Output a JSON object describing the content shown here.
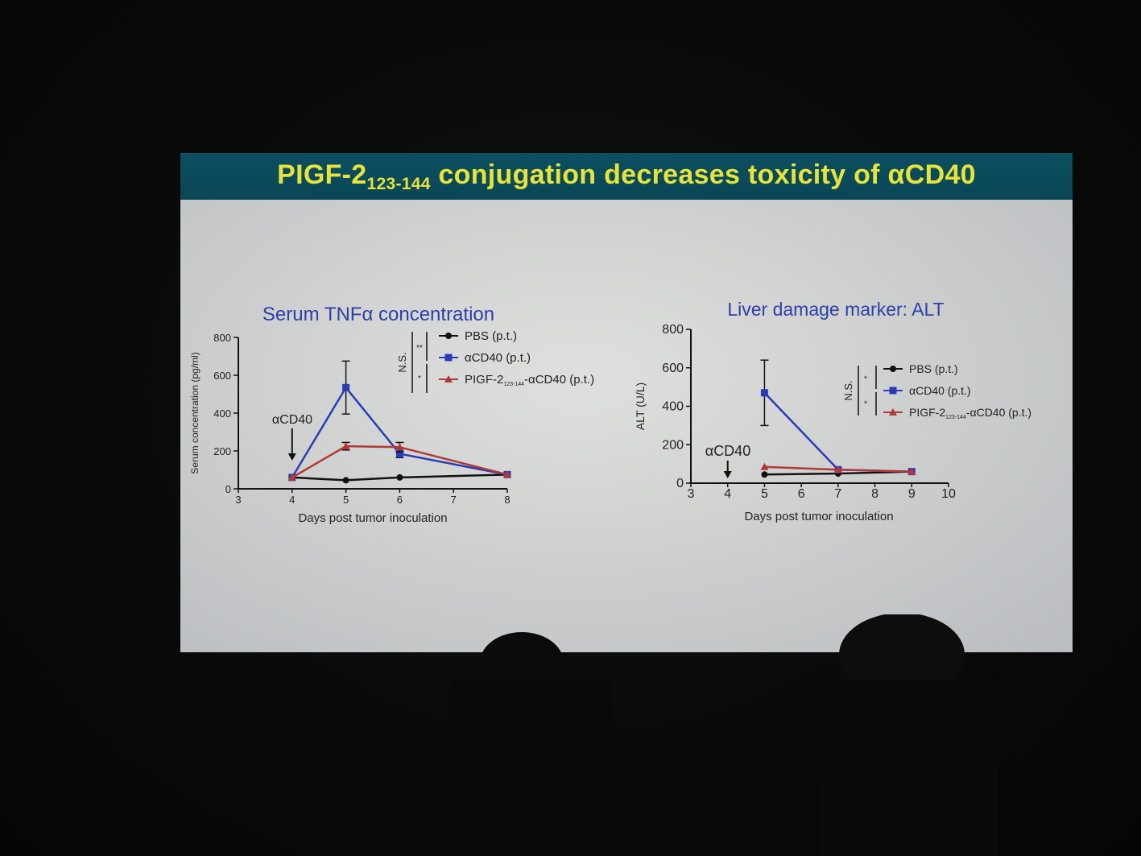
{
  "slide": {
    "title_main": "PIGF-2",
    "title_sub": "123-144",
    "title_rest": " conjugation decreases toxicity of αCD40",
    "title_color": "#e7e33a",
    "title_bar_color": "#0b4f60"
  },
  "chart_data": [
    {
      "type": "line",
      "title": "Serum TNFα concentration",
      "xlabel": "Days post tumor inoculation",
      "ylabel": "Serum concentration (pg/ml)",
      "xlim": [
        3,
        8
      ],
      "ylim": [
        0,
        800
      ],
      "xticks": [
        "3",
        "4",
        "5",
        "6",
        "7",
        "8"
      ],
      "yticks": [
        "0",
        "200",
        "400",
        "600",
        "800"
      ],
      "annotation": "αCD40",
      "annotation_x": 4,
      "significance": {
        "ns": "N.S.",
        "top": "**",
        "bottom": "*"
      },
      "legend_position": "top-right",
      "series": [
        {
          "name": "PBS (p.t.)",
          "color": "#111111",
          "marker": "circle",
          "x": [
            4,
            5,
            6,
            8
          ],
          "y": [
            60,
            45,
            60,
            75
          ],
          "err": [
            0,
            0,
            0,
            0
          ]
        },
        {
          "name": "αCD40 (p.t.)",
          "color": "#2a3bb8",
          "marker": "square",
          "x": [
            4,
            5,
            6,
            8
          ],
          "y": [
            60,
            535,
            185,
            75
          ],
          "err": [
            0,
            140,
            20,
            0
          ]
        },
        {
          "name": "PIGF-2",
          "name_sub": "123-144",
          "name_rest": "-αCD40 (p.t.)",
          "color": "#b03a3a",
          "marker": "triangle",
          "x": [
            4,
            5,
            6,
            8
          ],
          "y": [
            60,
            225,
            220,
            75
          ],
          "err": [
            0,
            20,
            25,
            0
          ]
        }
      ]
    },
    {
      "type": "line",
      "title": "Liver damage marker: ALT",
      "xlabel": "Days post tumor inoculation",
      "ylabel": "ALT (U/L)",
      "xlim": [
        3,
        10
      ],
      "ylim": [
        0,
        800
      ],
      "xticks": [
        "3",
        "4",
        "5",
        "6",
        "7",
        "8",
        "9",
        "10"
      ],
      "yticks": [
        "0",
        "200",
        "400",
        "600",
        "800"
      ],
      "annotation": "αCD40",
      "annotation_x": 4,
      "significance": {
        "ns": "N.S.",
        "top": "*",
        "bottom": "*"
      },
      "legend_position": "right",
      "series": [
        {
          "name": "PBS (p.t.)",
          "color": "#111111",
          "marker": "circle",
          "x": [
            5,
            7,
            9
          ],
          "y": [
            45,
            50,
            60
          ],
          "err": [
            0,
            0,
            0
          ]
        },
        {
          "name": "αCD40 (p.t.)",
          "color": "#2a3bb8",
          "marker": "square",
          "x": [
            5,
            7,
            9
          ],
          "y": [
            470,
            70,
            60
          ],
          "err": [
            170,
            0,
            0
          ]
        },
        {
          "name": "PIGF-2",
          "name_sub": "123-144",
          "name_rest": "-αCD40 (p.t.)",
          "color": "#b03a3a",
          "marker": "triangle",
          "x": [
            5,
            7,
            9
          ],
          "y": [
            85,
            70,
            60
          ],
          "err": [
            0,
            0,
            0
          ]
        }
      ]
    }
  ]
}
